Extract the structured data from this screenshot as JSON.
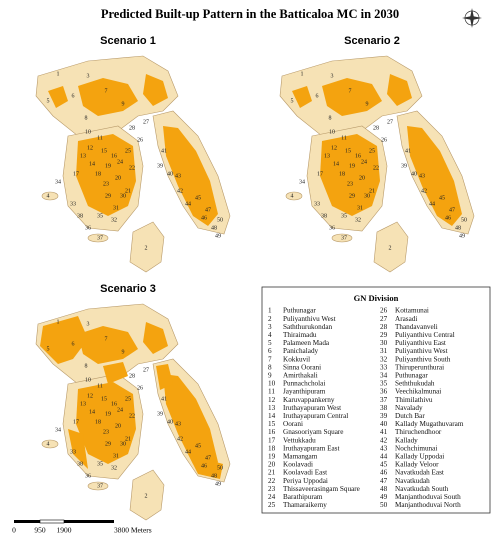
{
  "title": "Predicted Built-up Pattern in the Batticaloa MC in 2030",
  "maps": [
    {
      "label": "Scenario 1"
    },
    {
      "label": "Scenario 2"
    },
    {
      "label": "Scenario 3"
    }
  ],
  "legend": {
    "title": "GN Division",
    "divisions": [
      {
        "number": "1",
        "name": "Puthunagar"
      },
      {
        "number": "2",
        "name": "Puliyanthivu West"
      },
      {
        "number": "3",
        "name": "Saththurukondan"
      },
      {
        "number": "4",
        "name": "Thiraimadu"
      },
      {
        "number": "5",
        "name": "Palameen Mada"
      },
      {
        "number": "6",
        "name": "Panichalady"
      },
      {
        "number": "7",
        "name": "Kokkuvil"
      },
      {
        "number": "8",
        "name": "Sinna Oorani"
      },
      {
        "number": "9",
        "name": "Amirthakali"
      },
      {
        "number": "10",
        "name": "Punnachcholai"
      },
      {
        "number": "11",
        "name": "Jayanthipuram"
      },
      {
        "number": "12",
        "name": "Karuvappankerny"
      },
      {
        "number": "13",
        "name": "Iruthayapuram West"
      },
      {
        "number": "14",
        "name": "Iruthayapuram Central"
      },
      {
        "number": "15",
        "name": "Oorani"
      },
      {
        "number": "16",
        "name": "Gnasooriyam Square"
      },
      {
        "number": "17",
        "name": "Vettukkadu"
      },
      {
        "number": "18",
        "name": "Iruthayapuram East"
      },
      {
        "number": "19",
        "name": "Mamangam"
      },
      {
        "number": "20",
        "name": "Koolavadi"
      },
      {
        "number": "21",
        "name": "Koolavadi East"
      },
      {
        "number": "22",
        "name": "Periya Uppodai"
      },
      {
        "number": "23",
        "name": "Thissaveerasingam Square"
      },
      {
        "number": "24",
        "name": "Barathipuram"
      },
      {
        "number": "25",
        "name": "Thamaraikerny"
      },
      {
        "number": "26",
        "name": "Kottamunai"
      },
      {
        "number": "27",
        "name": "Arasadi"
      },
      {
        "number": "28",
        "name": "Thandavanveli"
      },
      {
        "number": "29",
        "name": "Puliyanthivu Central"
      },
      {
        "number": "30",
        "name": "Puliyanthivu East"
      },
      {
        "number": "31",
        "name": "Puliyanthivu West"
      },
      {
        "number": "32",
        "name": "Puliyanthivu South"
      },
      {
        "number": "33",
        "name": "Thiruperunthurai"
      },
      {
        "number": "34",
        "name": "Puthunagar"
      },
      {
        "number": "35",
        "name": "Seththukudah"
      },
      {
        "number": "36",
        "name": "Veechikalmunai"
      },
      {
        "number": "37",
        "name": "Thimilathivu"
      },
      {
        "number": "38",
        "name": "Navalady"
      },
      {
        "number": "39",
        "name": "Dutch Bar"
      },
      {
        "number": "40",
        "name": "Kallady Mugathuvaram"
      },
      {
        "number": "41",
        "name": "Thiruchendhoor"
      },
      {
        "number": "42",
        "name": "Kallady"
      },
      {
        "number": "43",
        "name": "Nochchimunai"
      },
      {
        "number": "44",
        "name": "Kallady Uppodai"
      },
      {
        "number": "45",
        "name": "Kallady Veloor"
      },
      {
        "number": "46",
        "name": "Navatkudah East"
      },
      {
        "number": "47",
        "name": "Navatkudah"
      },
      {
        "number": "48",
        "name": "Navatkudah South"
      },
      {
        "number": "49",
        "name": "Manjanthoduvai South"
      },
      {
        "number": "50",
        "name": "Manjanthoduvai North"
      }
    ]
  },
  "scale_bar": {
    "labels": [
      "0",
      "950",
      "1900",
      "3800 Meters"
    ]
  }
}
